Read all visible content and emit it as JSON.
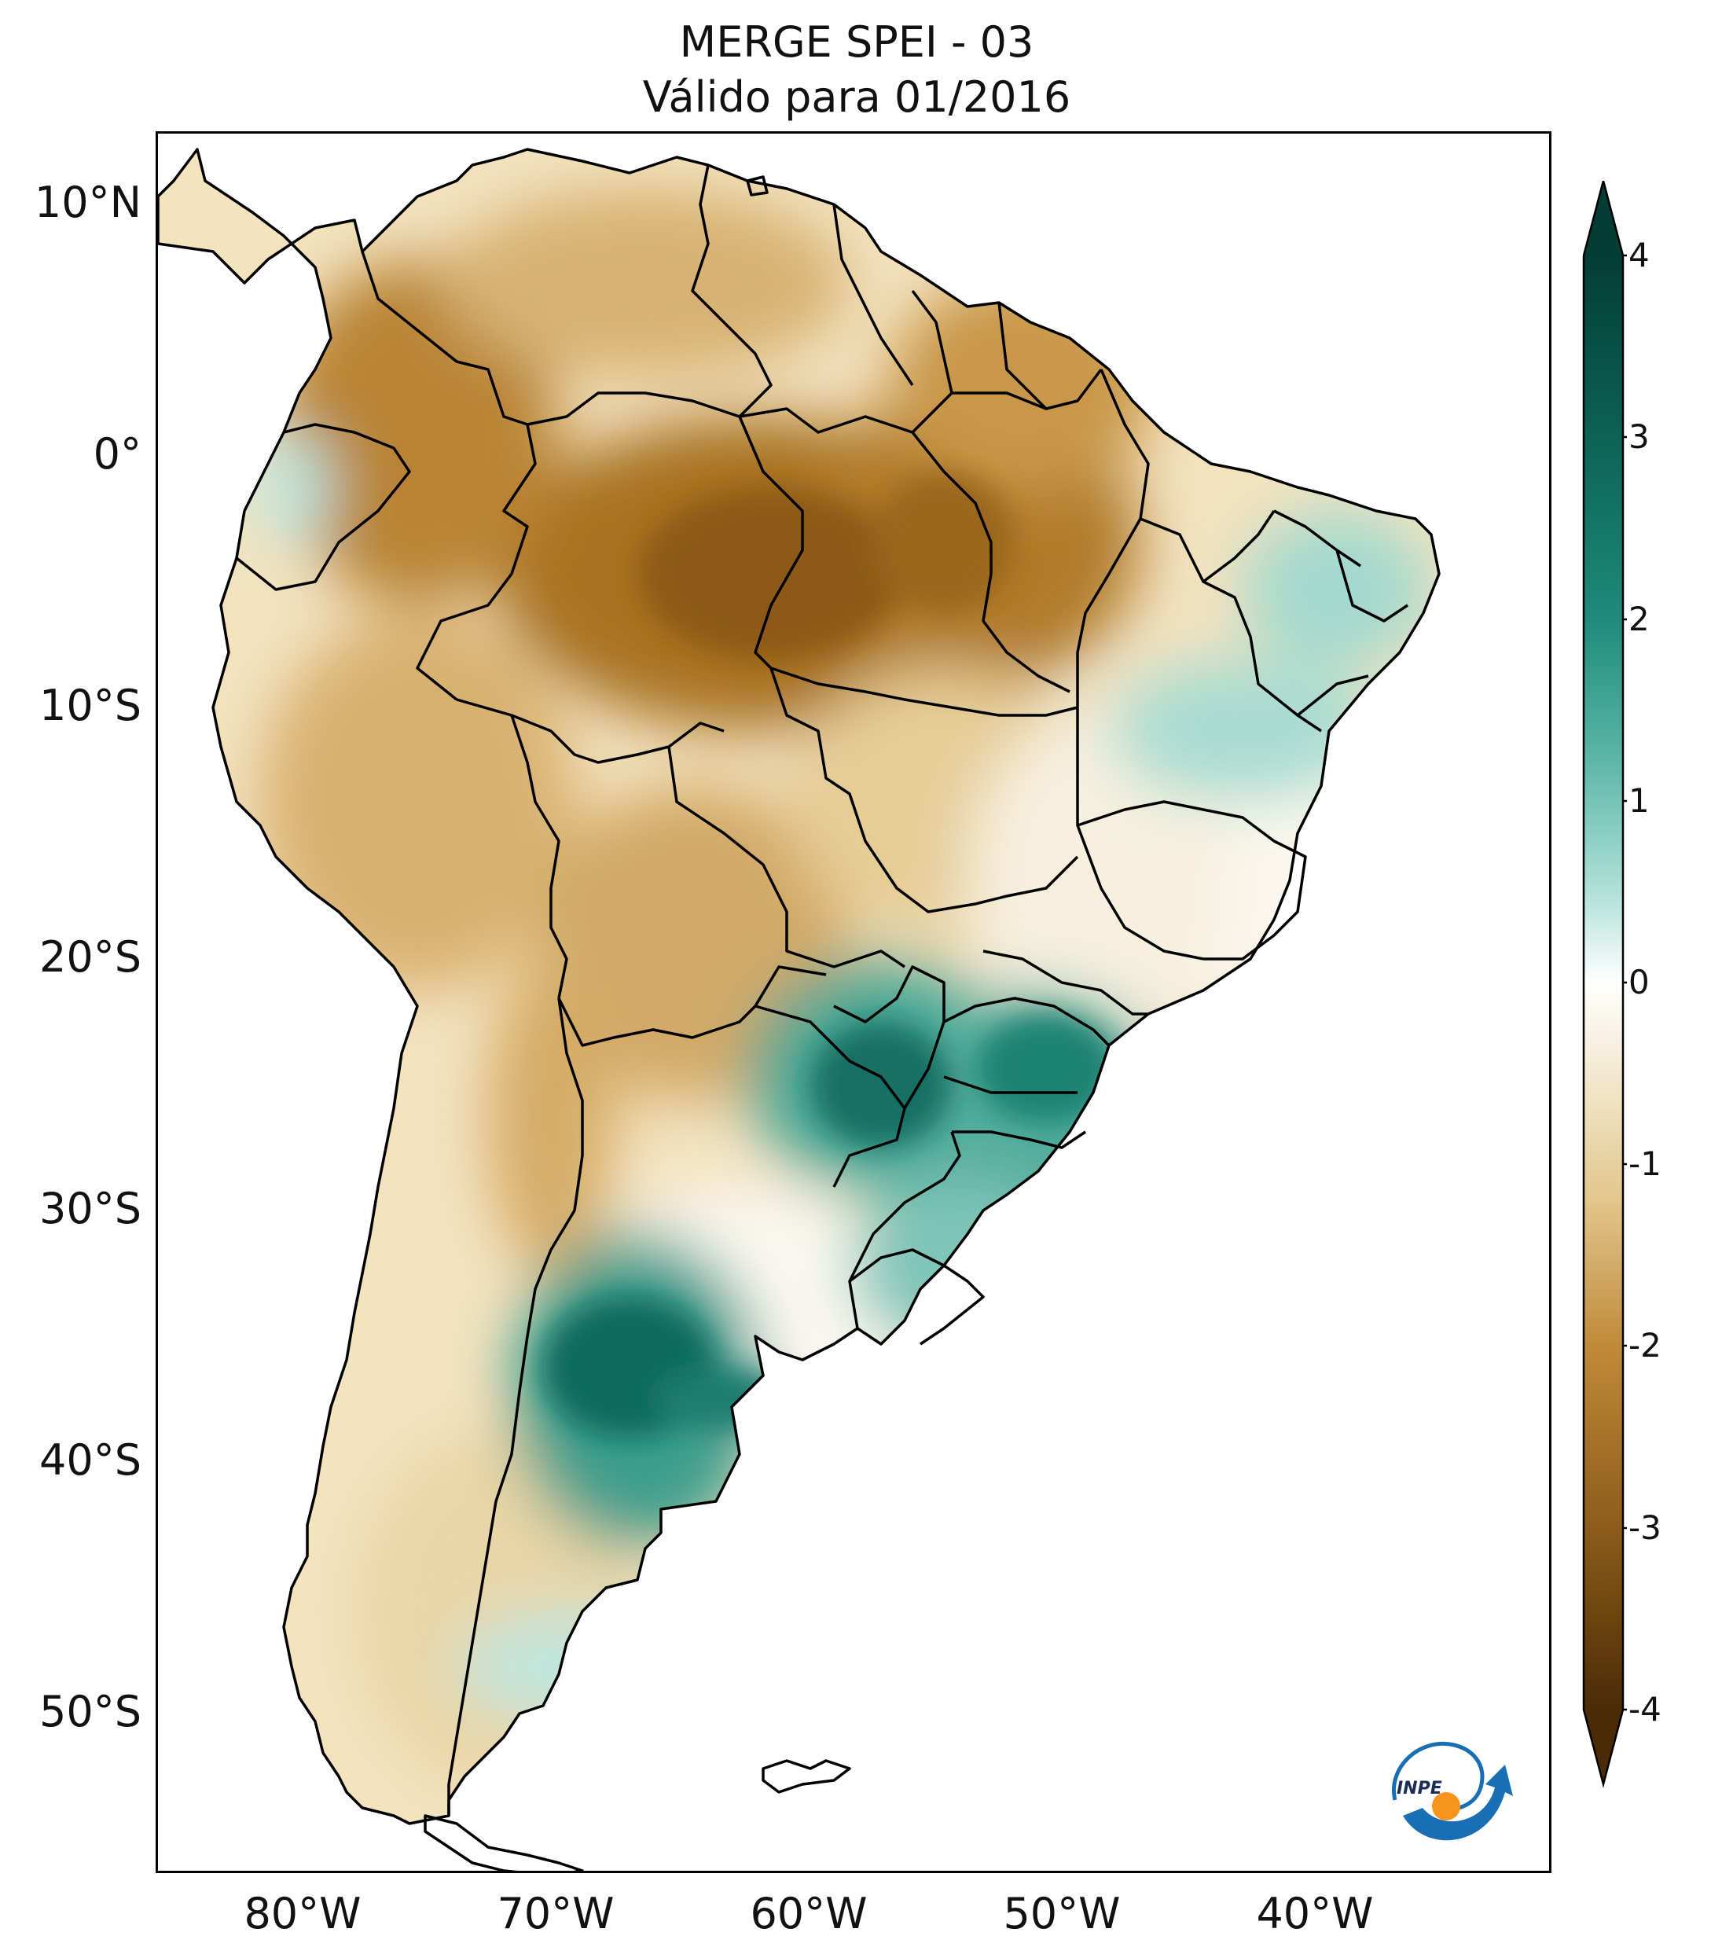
{
  "title": {
    "line1": "MERGE   SPEI - 03",
    "line2": "Válido para 01/2016"
  },
  "axes": {
    "lat_ticks": [
      "10°N",
      "0°",
      "10°S",
      "20°S",
      "30°S",
      "40°S",
      "50°S"
    ],
    "lon_ticks": [
      "80°W",
      "70°W",
      "60°W",
      "50°W",
      "40°W"
    ],
    "lon_range_deg": [
      -85,
      -30
    ],
    "lat_range_deg": [
      -56,
      13
    ]
  },
  "colorbar": {
    "ticks": [
      "4",
      "3",
      "2",
      "1",
      "0",
      "-1",
      "-2",
      "-3",
      "-4"
    ],
    "min": -4,
    "max": 4,
    "colors": [
      "#4a2b06",
      "#7a4c10",
      "#a8711e",
      "#cfa052",
      "#ecd9a6",
      "#f7f3e8",
      "#ffffff",
      "#e2f4f0",
      "#a8dfd5",
      "#5eb8a9",
      "#1f8a7c",
      "#0b6154",
      "#043d34"
    ]
  },
  "legend_colors": {
    "dry_strong": "#8a5a18",
    "dry_mod": "#c9963f",
    "dry_light": "#e9d09a",
    "neutral": "#ffffff",
    "wet_light": "#bfe7df",
    "wet_mod": "#5fb7a7",
    "wet_strong": "#0f6e62"
  },
  "logo": {
    "text": "INPE",
    "blue": "#1a6fb4",
    "orange": "#f7941d"
  }
}
